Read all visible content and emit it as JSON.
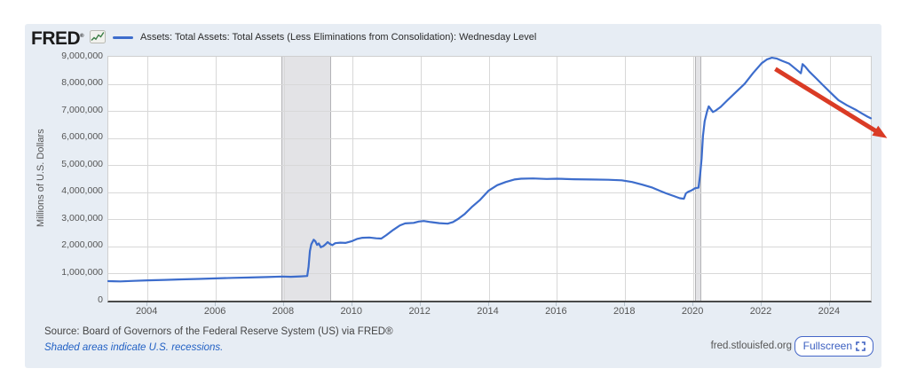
{
  "header": {
    "logo_text": "FRED",
    "logo_trademark": "®",
    "legend_label": "Assets: Total Assets: Total Assets (Less Eliminations from Consolidation): Wednesday Level"
  },
  "footer": {
    "source_text": "Source: Board of Governors of the Federal Reserve System (US) via FRED®",
    "recession_note": "Shaded areas indicate U.S. recessions.",
    "site_text": "fred.stlouisfed.org",
    "fullscreen_label": "Fullscreen"
  },
  "colors": {
    "card_bg": "#e7edf4",
    "plot_bg": "#ffffff",
    "line_blue": "#3d6dcc",
    "arrow_red": "#da3b25",
    "grid": "#d8d8d8",
    "recession_band": "#e3e3e6",
    "axis_dark": "#4a4a4a",
    "link_blue": "#2160c4",
    "fullscreen_blue": "#3b5fc0",
    "logo_green": "#3a7d44"
  },
  "chart_data": {
    "type": "line",
    "title": "",
    "xlabel": "",
    "ylabel": "Millions of U.S. Dollars",
    "xlim": [
      2002.85,
      2025.2
    ],
    "ylim": [
      0,
      9000000
    ],
    "grid": true,
    "legend_position": "top",
    "x_ticks": [
      2004,
      2006,
      2008,
      2010,
      2012,
      2014,
      2016,
      2018,
      2020,
      2022,
      2024
    ],
    "y_ticks": [
      0,
      1000000,
      2000000,
      3000000,
      4000000,
      5000000,
      6000000,
      7000000,
      8000000,
      9000000
    ],
    "recession_bands": [
      [
        2007.92,
        2009.38
      ],
      [
        2020.05,
        2020.23
      ]
    ],
    "annotation_arrow": {
      "from": [
        2022.4,
        8550000
      ],
      "to": [
        2025.68,
        6000000
      ],
      "color": "#da3b25"
    },
    "series": [
      {
        "name": "Assets: Total Assets: Total Assets (Less Eliminations from Consolidation): Wednesday Level",
        "color": "#3d6dcc",
        "points": [
          [
            2002.85,
            720000
          ],
          [
            2003.2,
            710000
          ],
          [
            2003.6,
            730000
          ],
          [
            2004.0,
            748000
          ],
          [
            2004.5,
            765000
          ],
          [
            2005.0,
            785000
          ],
          [
            2005.5,
            803000
          ],
          [
            2006.0,
            822000
          ],
          [
            2006.5,
            840000
          ],
          [
            2007.0,
            855000
          ],
          [
            2007.5,
            872000
          ],
          [
            2007.95,
            890000
          ],
          [
            2008.2,
            882000
          ],
          [
            2008.5,
            898000
          ],
          [
            2008.68,
            910000
          ],
          [
            2008.72,
            1250000
          ],
          [
            2008.76,
            1830000
          ],
          [
            2008.8,
            2080000
          ],
          [
            2008.87,
            2250000
          ],
          [
            2008.92,
            2190000
          ],
          [
            2008.97,
            2060000
          ],
          [
            2009.02,
            2110000
          ],
          [
            2009.08,
            1970000
          ],
          [
            2009.15,
            2010000
          ],
          [
            2009.22,
            2080000
          ],
          [
            2009.28,
            2160000
          ],
          [
            2009.35,
            2090000
          ],
          [
            2009.42,
            2050000
          ],
          [
            2009.5,
            2120000
          ],
          [
            2009.65,
            2140000
          ],
          [
            2009.8,
            2130000
          ],
          [
            2010.0,
            2200000
          ],
          [
            2010.15,
            2280000
          ],
          [
            2010.3,
            2320000
          ],
          [
            2010.5,
            2330000
          ],
          [
            2010.7,
            2300000
          ],
          [
            2010.85,
            2290000
          ],
          [
            2011.0,
            2420000
          ],
          [
            2011.2,
            2610000
          ],
          [
            2011.4,
            2780000
          ],
          [
            2011.55,
            2850000
          ],
          [
            2011.8,
            2870000
          ],
          [
            2011.95,
            2920000
          ],
          [
            2012.1,
            2940000
          ],
          [
            2012.3,
            2900000
          ],
          [
            2012.55,
            2860000
          ],
          [
            2012.8,
            2840000
          ],
          [
            2012.95,
            2900000
          ],
          [
            2013.1,
            3010000
          ],
          [
            2013.3,
            3200000
          ],
          [
            2013.5,
            3450000
          ],
          [
            2013.75,
            3720000
          ],
          [
            2014.0,
            4060000
          ],
          [
            2014.25,
            4260000
          ],
          [
            2014.5,
            4380000
          ],
          [
            2014.75,
            4470000
          ],
          [
            2014.95,
            4500000
          ],
          [
            2015.3,
            4510000
          ],
          [
            2015.7,
            4490000
          ],
          [
            2016.0,
            4500000
          ],
          [
            2016.5,
            4480000
          ],
          [
            2017.0,
            4470000
          ],
          [
            2017.5,
            4460000
          ],
          [
            2017.9,
            4440000
          ],
          [
            2018.2,
            4380000
          ],
          [
            2018.5,
            4280000
          ],
          [
            2018.8,
            4170000
          ],
          [
            2019.0,
            4060000
          ],
          [
            2019.2,
            3960000
          ],
          [
            2019.45,
            3850000
          ],
          [
            2019.6,
            3780000
          ],
          [
            2019.72,
            3760000
          ],
          [
            2019.78,
            3960000
          ],
          [
            2019.85,
            4020000
          ],
          [
            2019.95,
            4070000
          ],
          [
            2020.05,
            4150000
          ],
          [
            2020.15,
            4170000
          ],
          [
            2020.2,
            4670000
          ],
          [
            2020.24,
            5250000
          ],
          [
            2020.28,
            6080000
          ],
          [
            2020.33,
            6620000
          ],
          [
            2020.4,
            6980000
          ],
          [
            2020.45,
            7170000
          ],
          [
            2020.5,
            7080000
          ],
          [
            2020.57,
            6960000
          ],
          [
            2020.65,
            7010000
          ],
          [
            2020.8,
            7150000
          ],
          [
            2021.0,
            7400000
          ],
          [
            2021.25,
            7700000
          ],
          [
            2021.5,
            8000000
          ],
          [
            2021.75,
            8400000
          ],
          [
            2022.0,
            8760000
          ],
          [
            2022.15,
            8900000
          ],
          [
            2022.3,
            8965000
          ],
          [
            2022.45,
            8930000
          ],
          [
            2022.6,
            8850000
          ],
          [
            2022.8,
            8750000
          ],
          [
            2023.0,
            8550000
          ],
          [
            2023.15,
            8390000
          ],
          [
            2023.2,
            8730000
          ],
          [
            2023.28,
            8630000
          ],
          [
            2023.4,
            8450000
          ],
          [
            2023.6,
            8200000
          ],
          [
            2023.8,
            7950000
          ],
          [
            2024.0,
            7700000
          ],
          [
            2024.25,
            7400000
          ],
          [
            2024.5,
            7210000
          ],
          [
            2024.75,
            7050000
          ],
          [
            2024.95,
            6900000
          ],
          [
            2025.1,
            6790000
          ],
          [
            2025.2,
            6730000
          ]
        ]
      }
    ]
  }
}
